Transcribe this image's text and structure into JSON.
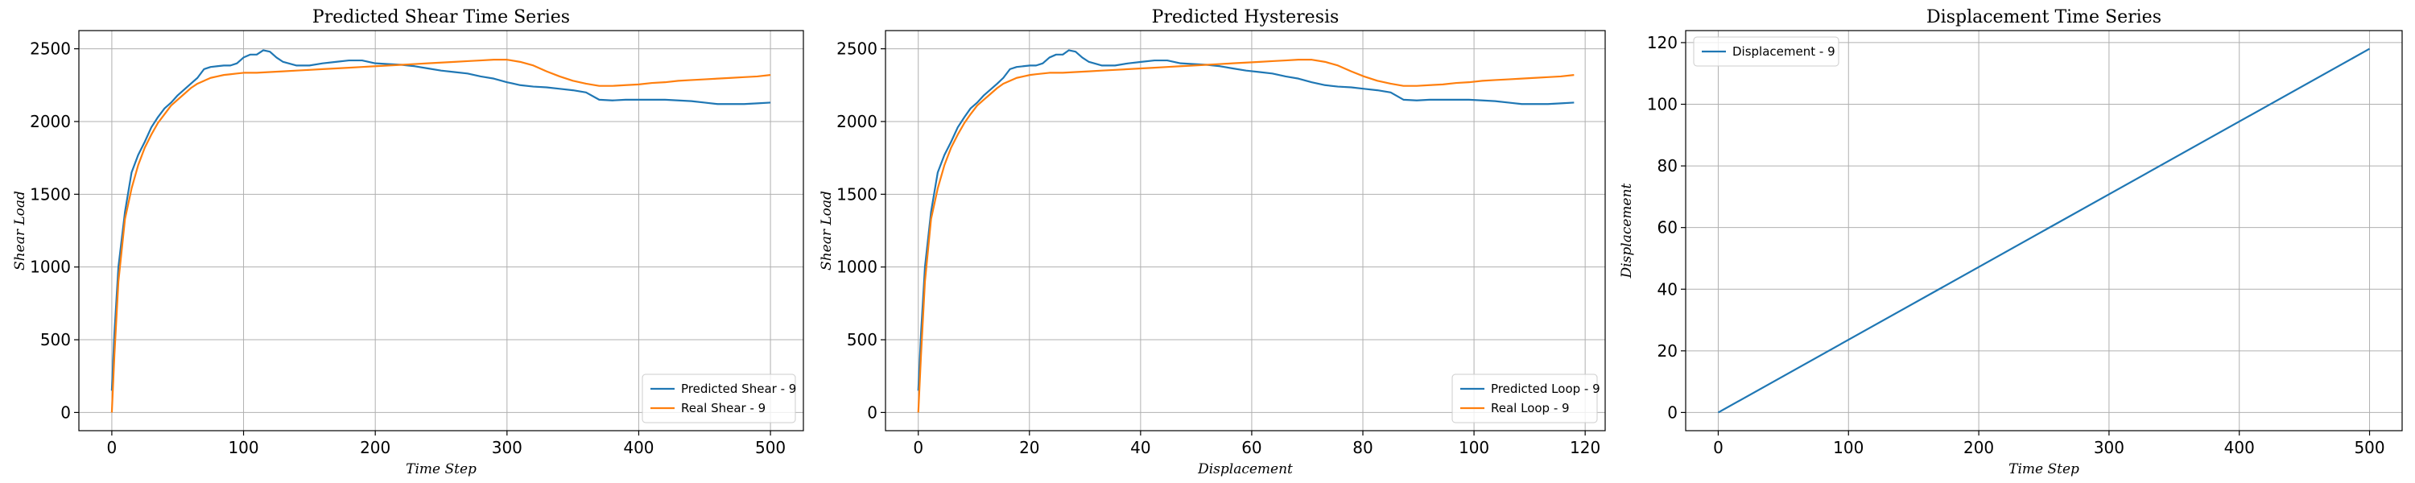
{
  "chart_data": [
    {
      "type": "line",
      "title": "Predicted Shear Time Series",
      "xlabel": "Time Step",
      "ylabel": "Shear Load",
      "xlim": [
        -25,
        525
      ],
      "ylim": [
        -125,
        2625
      ],
      "xticks": [
        0,
        100,
        200,
        300,
        400,
        500
      ],
      "yticks": [
        0,
        500,
        1000,
        1500,
        2000,
        2500
      ],
      "grid": true,
      "legend_position": "lower-right",
      "series": [
        {
          "name": "Predicted Shear - 9",
          "color": "#1f77b4",
          "x": [
            0,
            2,
            5,
            10,
            15,
            20,
            25,
            30,
            35,
            40,
            45,
            50,
            55,
            60,
            65,
            70,
            75,
            80,
            85,
            90,
            95,
            100,
            105,
            110,
            115,
            120,
            125,
            130,
            140,
            150,
            160,
            170,
            180,
            190,
            200,
            210,
            220,
            230,
            240,
            250,
            260,
            270,
            280,
            290,
            300,
            310,
            320,
            330,
            340,
            350,
            360,
            370,
            380,
            390,
            400,
            410,
            420,
            430,
            440,
            450,
            460,
            470,
            480,
            490,
            500
          ],
          "values": [
            150,
            550,
            1000,
            1380,
            1650,
            1770,
            1860,
            1960,
            2030,
            2090,
            2130,
            2180,
            2220,
            2260,
            2300,
            2360,
            2375,
            2380,
            2385,
            2385,
            2400,
            2440,
            2460,
            2460,
            2490,
            2480,
            2440,
            2410,
            2385,
            2385,
            2400,
            2410,
            2420,
            2420,
            2400,
            2395,
            2390,
            2380,
            2365,
            2350,
            2340,
            2330,
            2310,
            2295,
            2270,
            2250,
            2240,
            2235,
            2225,
            2215,
            2200,
            2150,
            2145,
            2150,
            2150,
            2150,
            2150,
            2145,
            2140,
            2130,
            2120,
            2120,
            2120,
            2125,
            2130
          ]
        },
        {
          "name": "Real Shear - 9",
          "color": "#ff7f0e",
          "x": [
            0,
            2,
            5,
            10,
            15,
            20,
            25,
            30,
            35,
            40,
            45,
            50,
            55,
            60,
            65,
            70,
            75,
            80,
            85,
            90,
            95,
            100,
            110,
            120,
            130,
            140,
            150,
            160,
            170,
            180,
            190,
            200,
            210,
            220,
            230,
            240,
            250,
            260,
            270,
            280,
            290,
            300,
            310,
            320,
            330,
            340,
            350,
            360,
            370,
            380,
            390,
            400,
            410,
            420,
            430,
            440,
            450,
            460,
            470,
            480,
            490,
            500
          ],
          "values": [
            0,
            400,
            900,
            1330,
            1540,
            1700,
            1820,
            1910,
            1990,
            2050,
            2110,
            2150,
            2190,
            2230,
            2260,
            2280,
            2300,
            2310,
            2320,
            2325,
            2330,
            2335,
            2335,
            2340,
            2345,
            2350,
            2355,
            2360,
            2365,
            2370,
            2375,
            2380,
            2385,
            2390,
            2395,
            2400,
            2405,
            2410,
            2415,
            2420,
            2425,
            2425,
            2410,
            2385,
            2345,
            2310,
            2280,
            2260,
            2245,
            2245,
            2250,
            2255,
            2265,
            2270,
            2280,
            2285,
            2290,
            2295,
            2300,
            2305,
            2310,
            2320
          ]
        }
      ]
    },
    {
      "type": "line",
      "title": "Predicted Hysteresis",
      "xlabel": "Displacement",
      "ylabel": "Shear Load",
      "xlim": [
        -5.9,
        123.6
      ],
      "ylim": [
        -125,
        2625
      ],
      "xticks": [
        0,
        20,
        40,
        60,
        80,
        100,
        120
      ],
      "yticks": [
        0,
        500,
        1000,
        1500,
        2000,
        2500
      ],
      "grid": true,
      "legend_position": "lower-right",
      "series": [
        {
          "name": "Predicted Loop - 9",
          "color": "#1f77b4",
          "x": [
            0,
            0.5,
            1.2,
            2.3,
            3.5,
            4.7,
            5.9,
            7.1,
            8.3,
            9.4,
            10.6,
            11.8,
            13,
            14.2,
            15.3,
            16.5,
            17.7,
            18.9,
            20.1,
            21.2,
            22.4,
            23.6,
            24.8,
            26,
            27.1,
            28.3,
            29.5,
            30.7,
            33,
            35.4,
            37.8,
            40.1,
            42.5,
            44.8,
            47.2,
            49.6,
            51.9,
            54.3,
            56.6,
            59,
            61.4,
            63.7,
            66.1,
            68.4,
            70.8,
            73.2,
            75.5,
            77.9,
            80.2,
            82.6,
            85,
            87.3,
            89.7,
            92,
            94.4,
            96.8,
            99.1,
            101.5,
            103.8,
            106.2,
            108.6,
            110.9,
            113.3,
            115.6,
            118
          ],
          "values": [
            150,
            550,
            1000,
            1380,
            1650,
            1770,
            1860,
            1960,
            2030,
            2090,
            2130,
            2180,
            2220,
            2260,
            2300,
            2360,
            2375,
            2380,
            2385,
            2385,
            2400,
            2440,
            2460,
            2460,
            2490,
            2480,
            2440,
            2410,
            2385,
            2385,
            2400,
            2410,
            2420,
            2420,
            2400,
            2395,
            2390,
            2380,
            2365,
            2350,
            2340,
            2330,
            2310,
            2295,
            2270,
            2250,
            2240,
            2235,
            2225,
            2215,
            2200,
            2150,
            2145,
            2150,
            2150,
            2150,
            2150,
            2145,
            2140,
            2130,
            2120,
            2120,
            2120,
            2125,
            2130
          ]
        },
        {
          "name": "Real Loop - 9",
          "color": "#ff7f0e",
          "x": [
            0,
            0.5,
            1.2,
            2.3,
            3.5,
            4.7,
            5.9,
            7.1,
            8.3,
            9.4,
            10.6,
            11.8,
            13,
            14.2,
            15.3,
            16.5,
            17.7,
            18.9,
            20.1,
            21.2,
            22.4,
            23.6,
            26,
            28.3,
            30.7,
            33,
            35.4,
            37.8,
            40.1,
            42.5,
            44.8,
            47.2,
            49.6,
            51.9,
            54.3,
            56.6,
            59,
            61.4,
            63.7,
            66.1,
            68.4,
            70.8,
            73.2,
            75.5,
            77.9,
            80.2,
            82.6,
            85,
            87.3,
            89.7,
            92,
            94.4,
            96.8,
            99.1,
            101.5,
            103.8,
            106.2,
            108.6,
            110.9,
            113.3,
            115.6,
            118
          ],
          "values": [
            0,
            400,
            900,
            1330,
            1540,
            1700,
            1820,
            1910,
            1990,
            2050,
            2110,
            2150,
            2190,
            2230,
            2260,
            2280,
            2300,
            2310,
            2320,
            2325,
            2330,
            2335,
            2335,
            2340,
            2345,
            2350,
            2355,
            2360,
            2365,
            2370,
            2375,
            2380,
            2385,
            2390,
            2395,
            2400,
            2405,
            2410,
            2415,
            2420,
            2425,
            2425,
            2410,
            2385,
            2345,
            2310,
            2280,
            2260,
            2245,
            2245,
            2250,
            2255,
            2265,
            2270,
            2280,
            2285,
            2290,
            2295,
            2300,
            2305,
            2310,
            2320
          ]
        }
      ]
    },
    {
      "type": "line",
      "title": "Displacement Time Series",
      "xlabel": "Time Step",
      "ylabel": "Displacement",
      "xlim": [
        -25,
        525
      ],
      "ylim": [
        -5.9,
        123.9
      ],
      "xticks": [
        0,
        100,
        200,
        300,
        400,
        500
      ],
      "yticks": [
        0,
        20,
        40,
        60,
        80,
        100,
        120
      ],
      "grid": true,
      "legend_position": "upper-left",
      "series": [
        {
          "name": "Displacement - 9",
          "color": "#1f77b4",
          "x": [
            0,
            500
          ],
          "values": [
            0,
            118
          ]
        }
      ]
    }
  ]
}
